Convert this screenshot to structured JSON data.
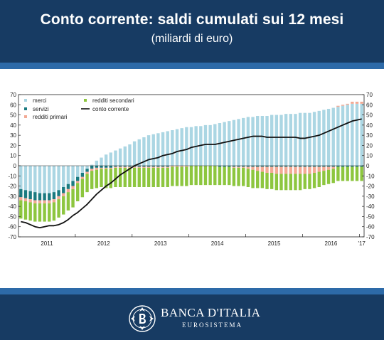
{
  "header": {
    "title": "Conto corrente: saldi cumulati sui 12 mesi",
    "subtitle": "(miliardi di euro)"
  },
  "footer": {
    "logo_name": "BANCA D'ITALIA",
    "logo_sub": "EUROSISTEMA",
    "logo_icon": "bank-seal-icon"
  },
  "colors": {
    "merci": "#abd6e3",
    "servizi": "#1a7a80",
    "redditi_primari": "#f2aa95",
    "redditi_secondari": "#8dc63f",
    "conto_corrente": "#111111",
    "banner": "#173b63",
    "stripe": "#2d6aa8"
  },
  "chart_data": {
    "type": "bar",
    "stacked": true,
    "title": "",
    "xlabel": "",
    "ylabel": "",
    "ylim": [
      -70,
      70
    ],
    "yticks": [
      -70,
      -60,
      -50,
      -40,
      -30,
      -20,
      -10,
      0,
      10,
      20,
      30,
      40,
      50,
      60,
      70
    ],
    "y_axis_both_sides": true,
    "grid": false,
    "legend_position": "top-left",
    "legend": [
      "merci",
      "redditi secondari",
      "servizi",
      "conto corrente",
      "redditi primari"
    ],
    "x_tick_labels": [
      "2011",
      "2012",
      "2013",
      "2014",
      "2015",
      "2016",
      "'17"
    ],
    "x_tick_positions": [
      6,
      18,
      30,
      42,
      54,
      66,
      72.5
    ],
    "x_year_boundaries": [
      12,
      24,
      36,
      48,
      60,
      72
    ],
    "months": [
      "2011-01",
      "2011-02",
      "2011-03",
      "2011-04",
      "2011-05",
      "2011-06",
      "2011-07",
      "2011-08",
      "2011-09",
      "2011-10",
      "2011-11",
      "2011-12",
      "2012-01",
      "2012-02",
      "2012-03",
      "2012-04",
      "2012-05",
      "2012-06",
      "2012-07",
      "2012-08",
      "2012-09",
      "2012-10",
      "2012-11",
      "2012-12",
      "2013-01",
      "2013-02",
      "2013-03",
      "2013-04",
      "2013-05",
      "2013-06",
      "2013-07",
      "2013-08",
      "2013-09",
      "2013-10",
      "2013-11",
      "2013-12",
      "2014-01",
      "2014-02",
      "2014-03",
      "2014-04",
      "2014-05",
      "2014-06",
      "2014-07",
      "2014-08",
      "2014-09",
      "2014-10",
      "2014-11",
      "2014-12",
      "2015-01",
      "2015-02",
      "2015-03",
      "2015-04",
      "2015-05",
      "2015-06",
      "2015-07",
      "2015-08",
      "2015-09",
      "2015-10",
      "2015-11",
      "2015-12",
      "2016-01",
      "2016-02",
      "2016-03",
      "2016-04",
      "2016-05",
      "2016-06",
      "2016-07",
      "2016-08",
      "2016-09",
      "2016-10",
      "2016-11",
      "2016-12",
      "2017-01"
    ],
    "series": [
      {
        "name": "merci",
        "kind": "bar",
        "values": [
          -23,
          -24,
          -25,
          -26,
          -27,
          -27,
          -27,
          -26,
          -24,
          -21,
          -18,
          -15,
          -11,
          -7,
          -3,
          1,
          5,
          8,
          11,
          13,
          15,
          17,
          19,
          21,
          24,
          26,
          28,
          30,
          31,
          32,
          33,
          34,
          35,
          36,
          37,
          38,
          38,
          39,
          39,
          40,
          40,
          41,
          42,
          43,
          44,
          45,
          46,
          47,
          48,
          48,
          49,
          49,
          49,
          50,
          50,
          50,
          51,
          51,
          51,
          52,
          52,
          52,
          53,
          54,
          55,
          56,
          57,
          58,
          59,
          60,
          61,
          61,
          61
        ]
      },
      {
        "name": "servizi",
        "kind": "bar",
        "values": [
          -8,
          -8,
          -8,
          -8,
          -7,
          -7,
          -7,
          -7,
          -6,
          -6,
          -5,
          -5,
          -4,
          -4,
          -3,
          -3,
          -2,
          -2,
          -2,
          -2,
          -1,
          -1,
          -1,
          -1,
          -1,
          -1,
          -1,
          -1,
          -1,
          -1,
          -1,
          -1,
          0,
          0,
          0,
          0,
          0,
          0,
          0,
          0,
          0,
          0,
          -1,
          -1,
          -1,
          -1,
          -1,
          -1,
          -1,
          -1,
          -1,
          -1,
          -1,
          -1,
          -1,
          -1,
          -1,
          -1,
          -1,
          -1,
          -1,
          -1,
          -1,
          -1,
          -1,
          -1,
          -1,
          -1,
          -1,
          -1,
          -1,
          -1,
          -1
        ]
      },
      {
        "name": "redditi primari",
        "kind": "bar",
        "values": [
          -3,
          -3,
          -3,
          -3,
          -3,
          -3,
          -3,
          -3,
          -3,
          -3,
          -3,
          -3,
          -2,
          -2,
          -2,
          -2,
          -2,
          -1,
          -1,
          -1,
          -1,
          -1,
          -1,
          -1,
          -1,
          -1,
          -1,
          -1,
          -1,
          -1,
          -1,
          -1,
          -1,
          -1,
          -1,
          -1,
          0,
          0,
          0,
          0,
          0,
          0,
          0,
          0,
          0,
          -1,
          -1,
          -1,
          -2,
          -3,
          -4,
          -5,
          -6,
          -6,
          -7,
          -7,
          -7,
          -7,
          -7,
          -7,
          -7,
          -7,
          -6,
          -5,
          -4,
          -3,
          -2,
          1,
          1,
          1,
          2,
          2,
          2
        ]
      },
      {
        "name": "redditi secondari",
        "kind": "bar",
        "values": [
          -18,
          -18,
          -18,
          -18,
          -18,
          -18,
          -18,
          -18,
          -18,
          -18,
          -18,
          -18,
          -18,
          -18,
          -18,
          -18,
          -18,
          -18,
          -19,
          -19,
          -19,
          -19,
          -19,
          -19,
          -19,
          -19,
          -19,
          -19,
          -19,
          -19,
          -19,
          -19,
          -19,
          -19,
          -19,
          -19,
          -19,
          -19,
          -19,
          -19,
          -19,
          -19,
          -18,
          -18,
          -18,
          -18,
          -18,
          -18,
          -18,
          -18,
          -17,
          -16,
          -16,
          -16,
          -16,
          -16,
          -16,
          -16,
          -16,
          -16,
          -15,
          -15,
          -15,
          -15,
          -14,
          -14,
          -14,
          -14,
          -14,
          -14,
          -14,
          -14,
          -14
        ]
      },
      {
        "name": "conto corrente",
        "kind": "line",
        "values": [
          -55,
          -56,
          -58,
          -60,
          -61,
          -60,
          -59,
          -59,
          -58,
          -56,
          -53,
          -49,
          -46,
          -42,
          -38,
          -33,
          -28,
          -24,
          -20,
          -17,
          -13,
          -9,
          -6,
          -3,
          0,
          2,
          4,
          6,
          7,
          8,
          10,
          11,
          12,
          14,
          15,
          16,
          18,
          19,
          20,
          21,
          21,
          21,
          22,
          23,
          24,
          25,
          26,
          27,
          28,
          29,
          29,
          29,
          28,
          28,
          28,
          28,
          28,
          28,
          28,
          27,
          27,
          28,
          29,
          30,
          32,
          34,
          36,
          38,
          40,
          42,
          44,
          45,
          46
        ]
      }
    ]
  }
}
